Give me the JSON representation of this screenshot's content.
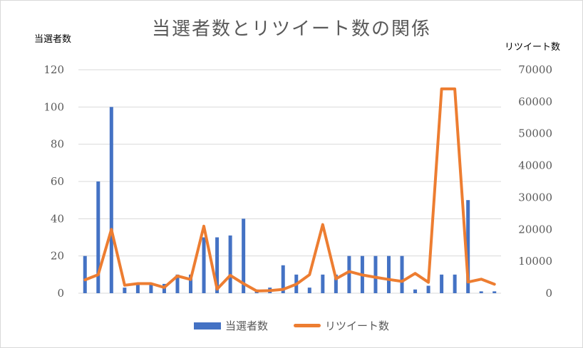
{
  "chart_data": {
    "type": "bar+line",
    "title": "当選者数とリツイート数の関係",
    "ylabel_left": "当選者数",
    "ylabel_right": "リツイート数",
    "ylim_left": [
      0,
      120
    ],
    "ylim_right": [
      0,
      70000
    ],
    "yticks_left": [
      "0",
      "20",
      "40",
      "60",
      "80",
      "100",
      "120"
    ],
    "yticks_right": [
      "0",
      "10000",
      "20000",
      "30000",
      "40000",
      "50000",
      "60000",
      "70000"
    ],
    "grid": true,
    "legend_position": "bottom",
    "series": [
      {
        "name": "当選者数",
        "kind": "bar",
        "axis": "left",
        "color": "#4472c4",
        "values": [
          20,
          60,
          100,
          3,
          5,
          5,
          5,
          10,
          10,
          30,
          30,
          31,
          40,
          2,
          3,
          15,
          10,
          3,
          10,
          10,
          20,
          20,
          20,
          20,
          20,
          2,
          4,
          10,
          10,
          50,
          1,
          1
        ]
      },
      {
        "name": "リツイート数",
        "kind": "line",
        "axis": "right",
        "color": "#ed7d31",
        "values": [
          4200,
          5800,
          20000,
          2500,
          3000,
          3000,
          1800,
          5400,
          4300,
          21000,
          1300,
          5600,
          3000,
          700,
          800,
          1200,
          2800,
          5800,
          21500,
          4500,
          6800,
          5700,
          5000,
          4300,
          3700,
          6200,
          3400,
          64000,
          64000,
          3500,
          4400,
          2800
        ]
      }
    ]
  }
}
